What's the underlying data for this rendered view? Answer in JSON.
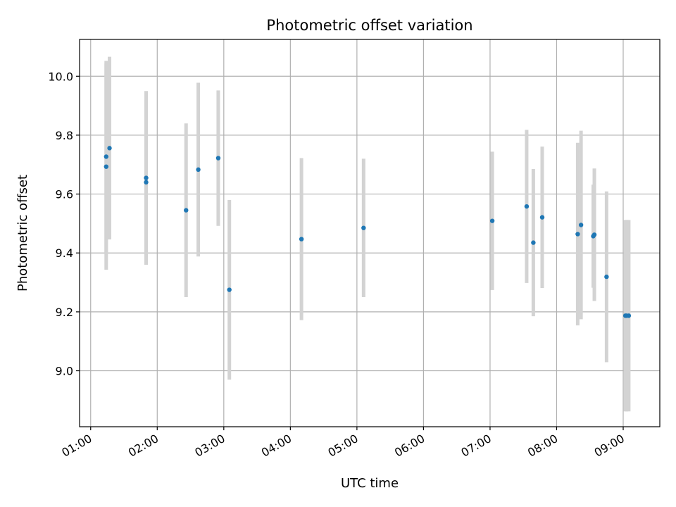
{
  "chart_data": {
    "type": "scatter",
    "title": "Photometric offset variation",
    "xlabel": "UTC time",
    "ylabel": "Photometric offset",
    "xlim": [
      "00:50",
      "09:33"
    ],
    "ylim": [
      8.81,
      10.125
    ],
    "x_ticks": [
      "01:00",
      "02:00",
      "03:00",
      "04:00",
      "05:00",
      "06:00",
      "07:00",
      "08:00",
      "09:00"
    ],
    "y_ticks": [
      "9.0",
      "9.2",
      "9.4",
      "9.6",
      "9.8",
      "10.0"
    ],
    "grid": true,
    "error_bar_color": "#d3d3d3",
    "point_color": "#1f77b4",
    "points": [
      {
        "x": "01:14",
        "y": 9.727,
        "yerr": 0.325
      },
      {
        "x": "01:14",
        "y": 9.693,
        "yerr": 0.35
      },
      {
        "x": "01:17",
        "y": 9.756,
        "yerr": 0.31
      },
      {
        "x": "01:50",
        "y": 9.64,
        "yerr": 0.28
      },
      {
        "x": "01:50",
        "y": 9.655,
        "yerr": 0.295
      },
      {
        "x": "02:26",
        "y": 9.545,
        "yerr": 0.295
      },
      {
        "x": "02:37",
        "y": 9.683,
        "yerr": 0.295
      },
      {
        "x": "02:55",
        "y": 9.722,
        "yerr": 0.23
      },
      {
        "x": "03:05",
        "y": 9.275,
        "yerr": 0.305
      },
      {
        "x": "04:10",
        "y": 9.447,
        "yerr": 0.275
      },
      {
        "x": "05:06",
        "y": 9.485,
        "yerr": 0.235
      },
      {
        "x": "07:02",
        "y": 9.509,
        "yerr": 0.235
      },
      {
        "x": "07:33",
        "y": 9.558,
        "yerr": 0.26
      },
      {
        "x": "07:39",
        "y": 9.435,
        "yerr": 0.25
      },
      {
        "x": "07:47",
        "y": 9.521,
        "yerr": 0.24
      },
      {
        "x": "08:19",
        "y": 9.464,
        "yerr": 0.31
      },
      {
        "x": "08:22",
        "y": 9.495,
        "yerr": 0.32
      },
      {
        "x": "08:33",
        "y": 9.457,
        "yerr": 0.175
      },
      {
        "x": "08:34",
        "y": 9.462,
        "yerr": 0.225
      },
      {
        "x": "08:45",
        "y": 9.319,
        "yerr": 0.29
      },
      {
        "x": "09:02",
        "y": 9.187,
        "yerr": 0.325
      },
      {
        "x": "09:03",
        "y": 9.187,
        "yerr": 0.325
      },
      {
        "x": "09:05",
        "y": 9.187,
        "yerr": 0.325
      }
    ]
  }
}
